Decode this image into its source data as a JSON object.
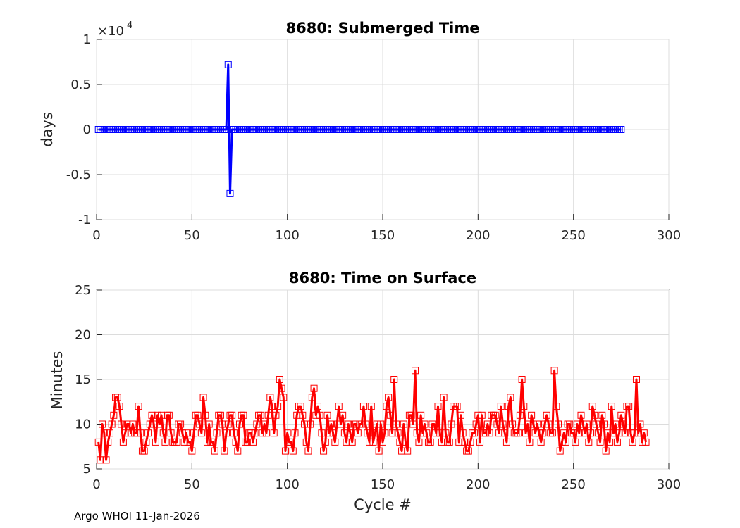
{
  "footer": "Argo WHOI 11-Jan-2026",
  "chart_data": [
    {
      "type": "line",
      "title": "8680: Submerged Time",
      "xlabel": "",
      "ylabel": "days",
      "xlim": [
        0,
        300
      ],
      "ylim": [
        -1,
        1
      ],
      "xticks": [
        "0",
        "50",
        "100",
        "150",
        "200",
        "250",
        "300"
      ],
      "yticks": [
        "-1",
        "-0.5",
        "0",
        "0.5",
        "1"
      ],
      "exponent_base": "×10",
      "exponent_power": "4",
      "grid": true,
      "color": "#0000ff",
      "marker": "square",
      "series_description": "Cycles 1–275 near 0 days except spike at cycle 69 (+0.72×10^4) and cycle 70 (-0.71×10^4)",
      "series": [
        {
          "name": "Submerged Time",
          "x_start": 1,
          "x_end": 275,
          "baseline": 0,
          "spikes": [
            [
              69,
              0.72
            ],
            [
              70,
              -0.71
            ]
          ]
        }
      ]
    },
    {
      "type": "line",
      "title": "8680: Time on Surface",
      "xlabel": "Cycle #",
      "ylabel": "Minutes",
      "xlim": [
        0,
        300
      ],
      "ylim": [
        5,
        25
      ],
      "xticks": [
        "0",
        "50",
        "100",
        "150",
        "200",
        "250",
        "300"
      ],
      "yticks": [
        "5",
        "10",
        "15",
        "20",
        "25"
      ],
      "grid": true,
      "color": "#ff0000",
      "marker": "square",
      "series": [
        {
          "name": "Time on Surface",
          "x_start": 1,
          "values": [
            8,
            6,
            10,
            9,
            6,
            8,
            9,
            10,
            11,
            13,
            13,
            12,
            10,
            8,
            9,
            10,
            10,
            9,
            10,
            9,
            9,
            12,
            9,
            7,
            7,
            8,
            9,
            10,
            11,
            10,
            8,
            11,
            10,
            11,
            9,
            8,
            11,
            11,
            9,
            8,
            8,
            8,
            10,
            10,
            9,
            8,
            9,
            8,
            8,
            7,
            9,
            11,
            11,
            10,
            9,
            13,
            11,
            8,
            10,
            8,
            8,
            7,
            9,
            11,
            11,
            10,
            7,
            9,
            10,
            11,
            11,
            9,
            8,
            7,
            10,
            11,
            11,
            8,
            8,
            9,
            9,
            8,
            9,
            10,
            11,
            11,
            9,
            10,
            9,
            11,
            13,
            12,
            9,
            11,
            12,
            15,
            14,
            13,
            7,
            9,
            8,
            8,
            7,
            9,
            11,
            12,
            12,
            11,
            10,
            8,
            7,
            10,
            13,
            14,
            11,
            12,
            11,
            9,
            7,
            8,
            11,
            9,
            10,
            9,
            8,
            10,
            12,
            10,
            11,
            9,
            8,
            10,
            9,
            8,
            10,
            10,
            9,
            10,
            10,
            12,
            10,
            9,
            8,
            12,
            8,
            9,
            10,
            7,
            10,
            8,
            9,
            12,
            13,
            11,
            9,
            15,
            10,
            9,
            8,
            7,
            10,
            8,
            7,
            11,
            11,
            10,
            16,
            9,
            8,
            11,
            9,
            10,
            9,
            8,
            8,
            10,
            10,
            9,
            12,
            9,
            8,
            13,
            9,
            8,
            8,
            10,
            12,
            12,
            12,
            8,
            11,
            9,
            8,
            7,
            7,
            8,
            9,
            9,
            10,
            11,
            8,
            11,
            9,
            9,
            10,
            9,
            11,
            11,
            11,
            10,
            9,
            12,
            10,
            9,
            8,
            12,
            13,
            10,
            9,
            9,
            9,
            11,
            15,
            12,
            9,
            10,
            8,
            11,
            10,
            9,
            10,
            9,
            8,
            9,
            10,
            11,
            10,
            9,
            9,
            16,
            12,
            10,
            7,
            8,
            9,
            8,
            10,
            10,
            9,
            9,
            8,
            10,
            9,
            11,
            10,
            9,
            10,
            8,
            9,
            12,
            11,
            10,
            9,
            8,
            11,
            10,
            7,
            9,
            8,
            12,
            9,
            10,
            8,
            9,
            11,
            10,
            9,
            12,
            12,
            9,
            8,
            9,
            15,
            9,
            10,
            8,
            9,
            8
          ]
        }
      ]
    }
  ]
}
